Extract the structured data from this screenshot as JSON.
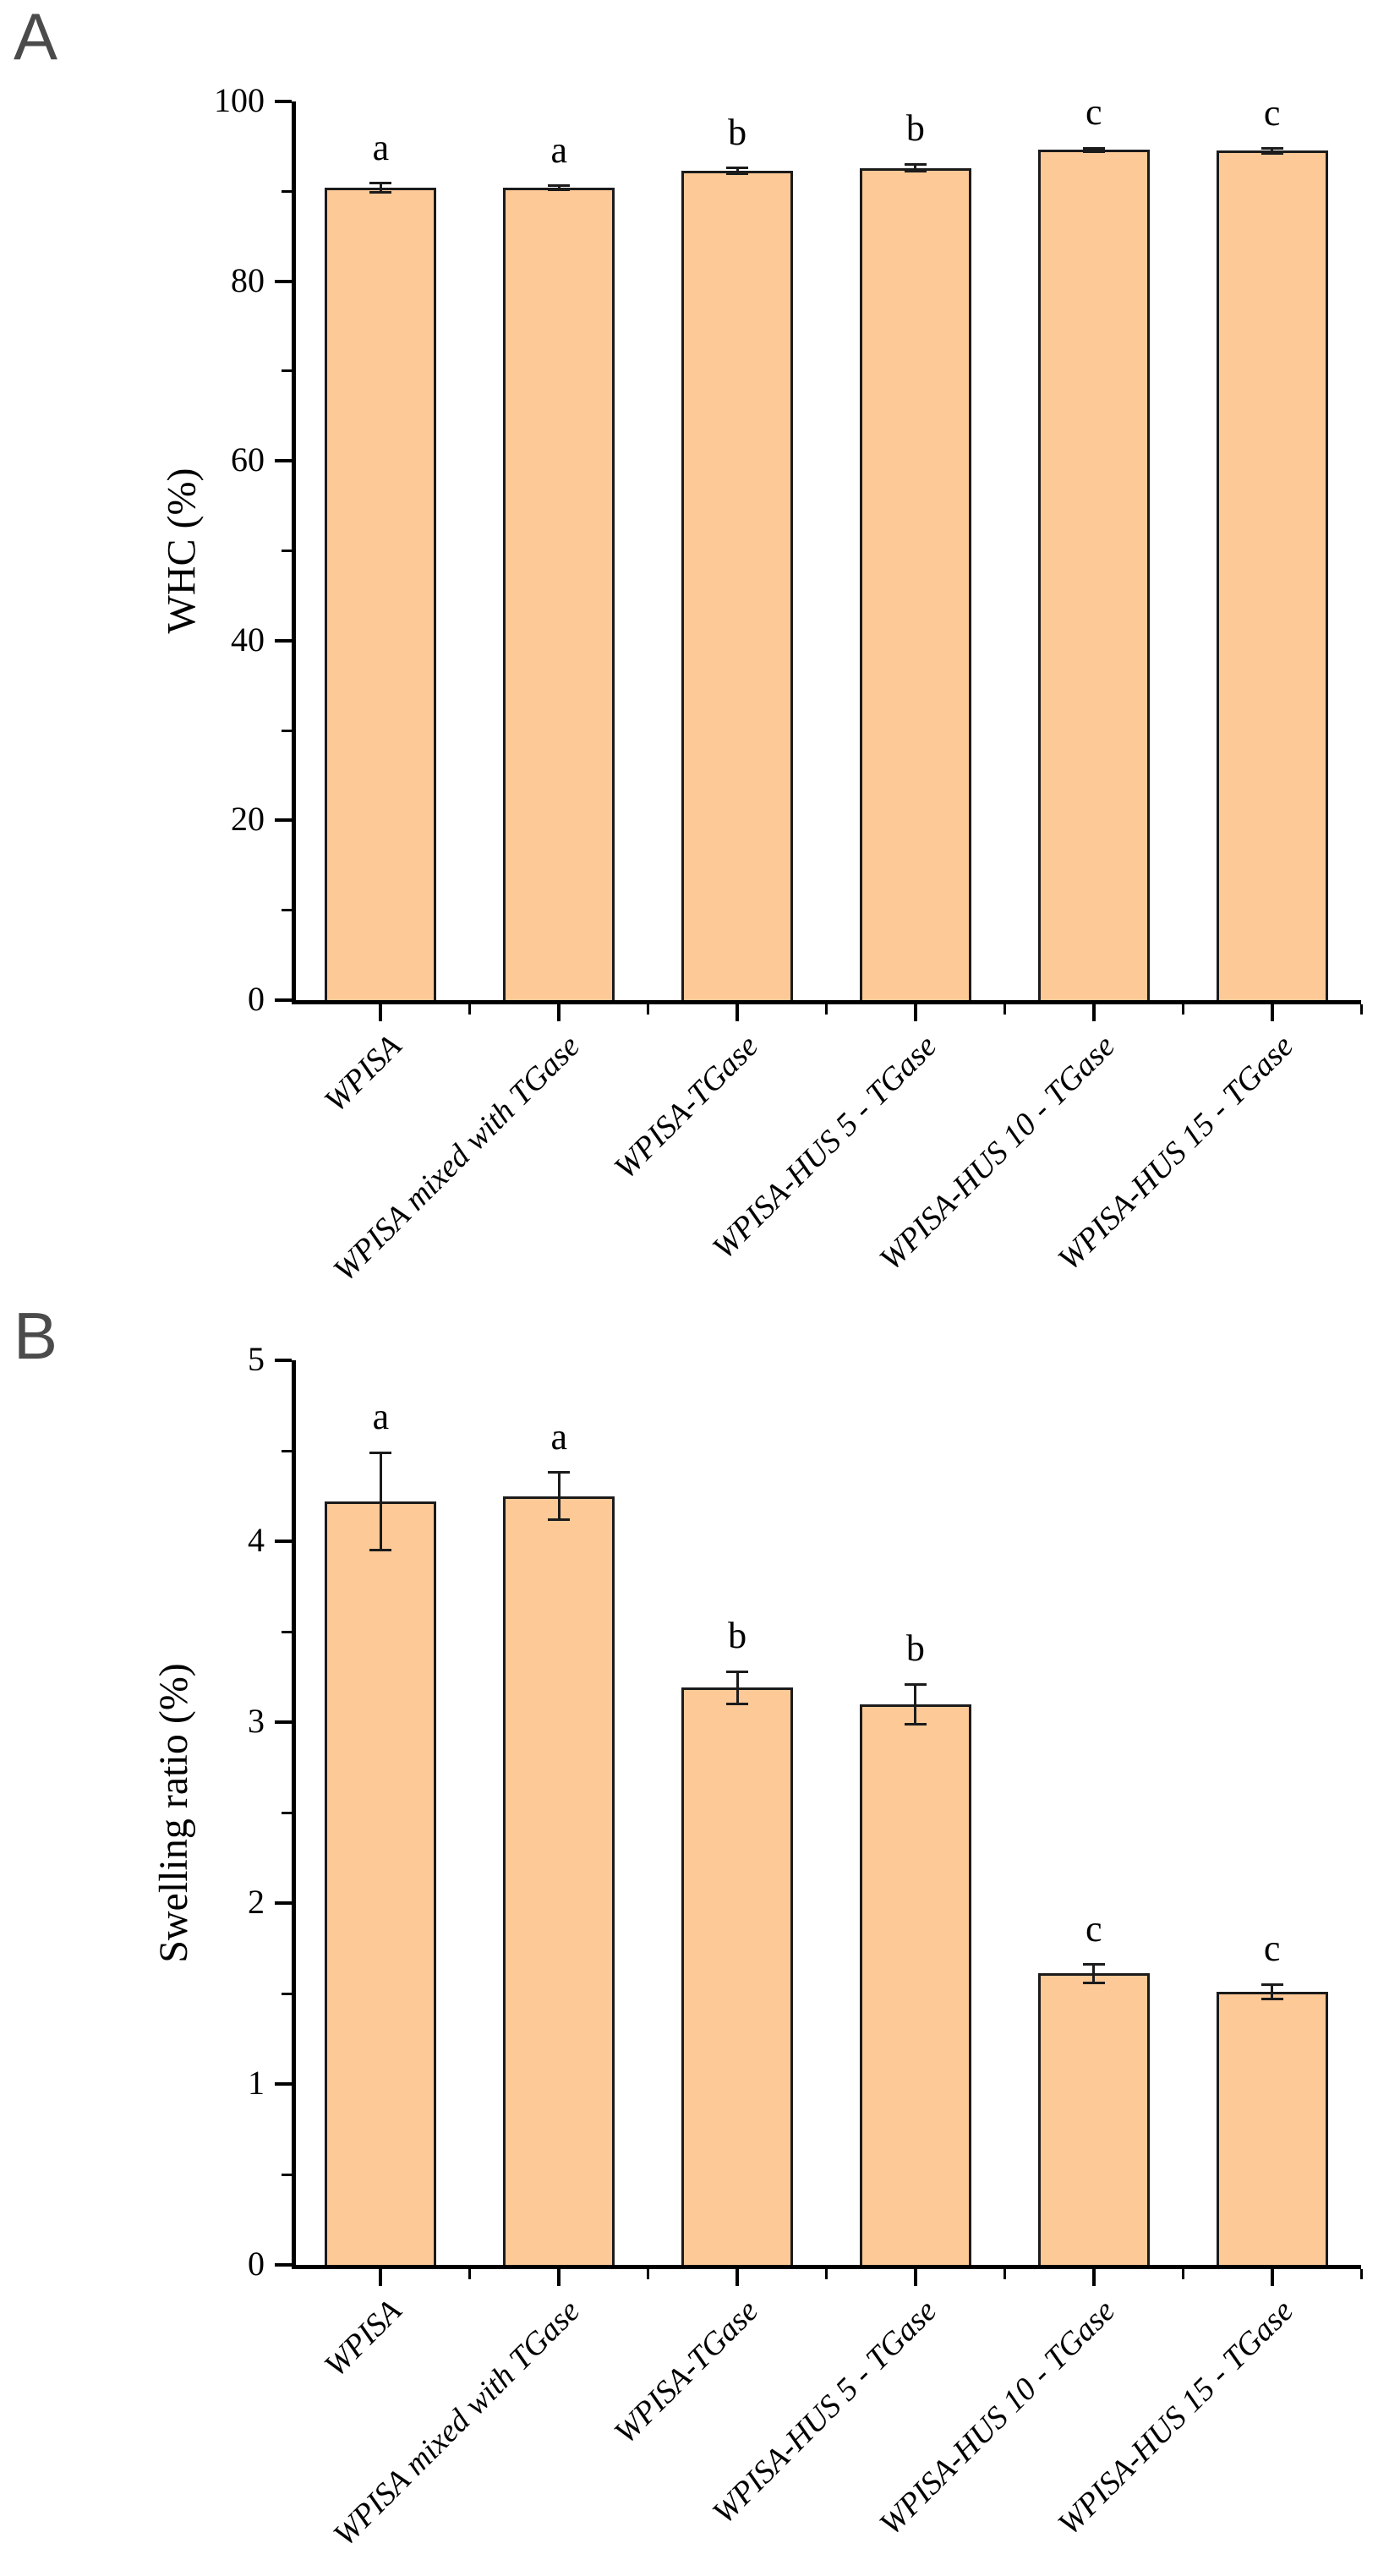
{
  "figure": {
    "panels": [
      {
        "letter": "A"
      },
      {
        "letter": "B"
      }
    ]
  },
  "chart_data": [
    {
      "type": "bar",
      "panel": "A",
      "title": "",
      "xlabel": "",
      "ylabel": "WHC (%)",
      "ylim": [
        0,
        100
      ],
      "ytick_major": 20,
      "ytick_minor": 10,
      "grid": false,
      "legend": "none",
      "categories": [
        "WPISA",
        "WPISA mixed with TGase",
        "WPISA-TGase",
        "WPISA-HUS 5 - TGase",
        "WPISA-HUS 10 - TGase",
        "WPISA-HUS 15 - TGase"
      ],
      "values": [
        90.4,
        90.4,
        92.3,
        92.6,
        94.6,
        94.5
      ],
      "errors": [
        0.5,
        0.2,
        0.3,
        0.4,
        0.2,
        0.25
      ],
      "sig_letters": [
        "a",
        "a",
        "b",
        "b",
        "c",
        "c"
      ],
      "bar_color": "#FDC997",
      "bar_border_color": "#1B1B1B",
      "axis_color": "#000000"
    },
    {
      "type": "bar",
      "panel": "B",
      "title": "",
      "xlabel": "",
      "ylabel": "Swelling ratio (%)",
      "ylim": [
        0,
        5
      ],
      "ytick_major": 1,
      "ytick_minor": 0.5,
      "grid": false,
      "legend": "none",
      "categories": [
        "WPISA",
        "WPISA mixed with TGase",
        "WPISA-TGase",
        "WPISA-HUS 5 - TGase",
        "WPISA-HUS 10 - TGase",
        "WPISA-HUS 15 - TGase"
      ],
      "values": [
        4.22,
        4.25,
        3.19,
        3.1,
        1.61,
        1.51
      ],
      "errors": [
        0.27,
        0.13,
        0.09,
        0.11,
        0.05,
        0.04
      ],
      "sig_letters": [
        "a",
        "a",
        "b",
        "b",
        "c",
        "c"
      ],
      "bar_color": "#FDC997",
      "bar_border_color": "#1B1B1B",
      "axis_color": "#000000"
    }
  ]
}
